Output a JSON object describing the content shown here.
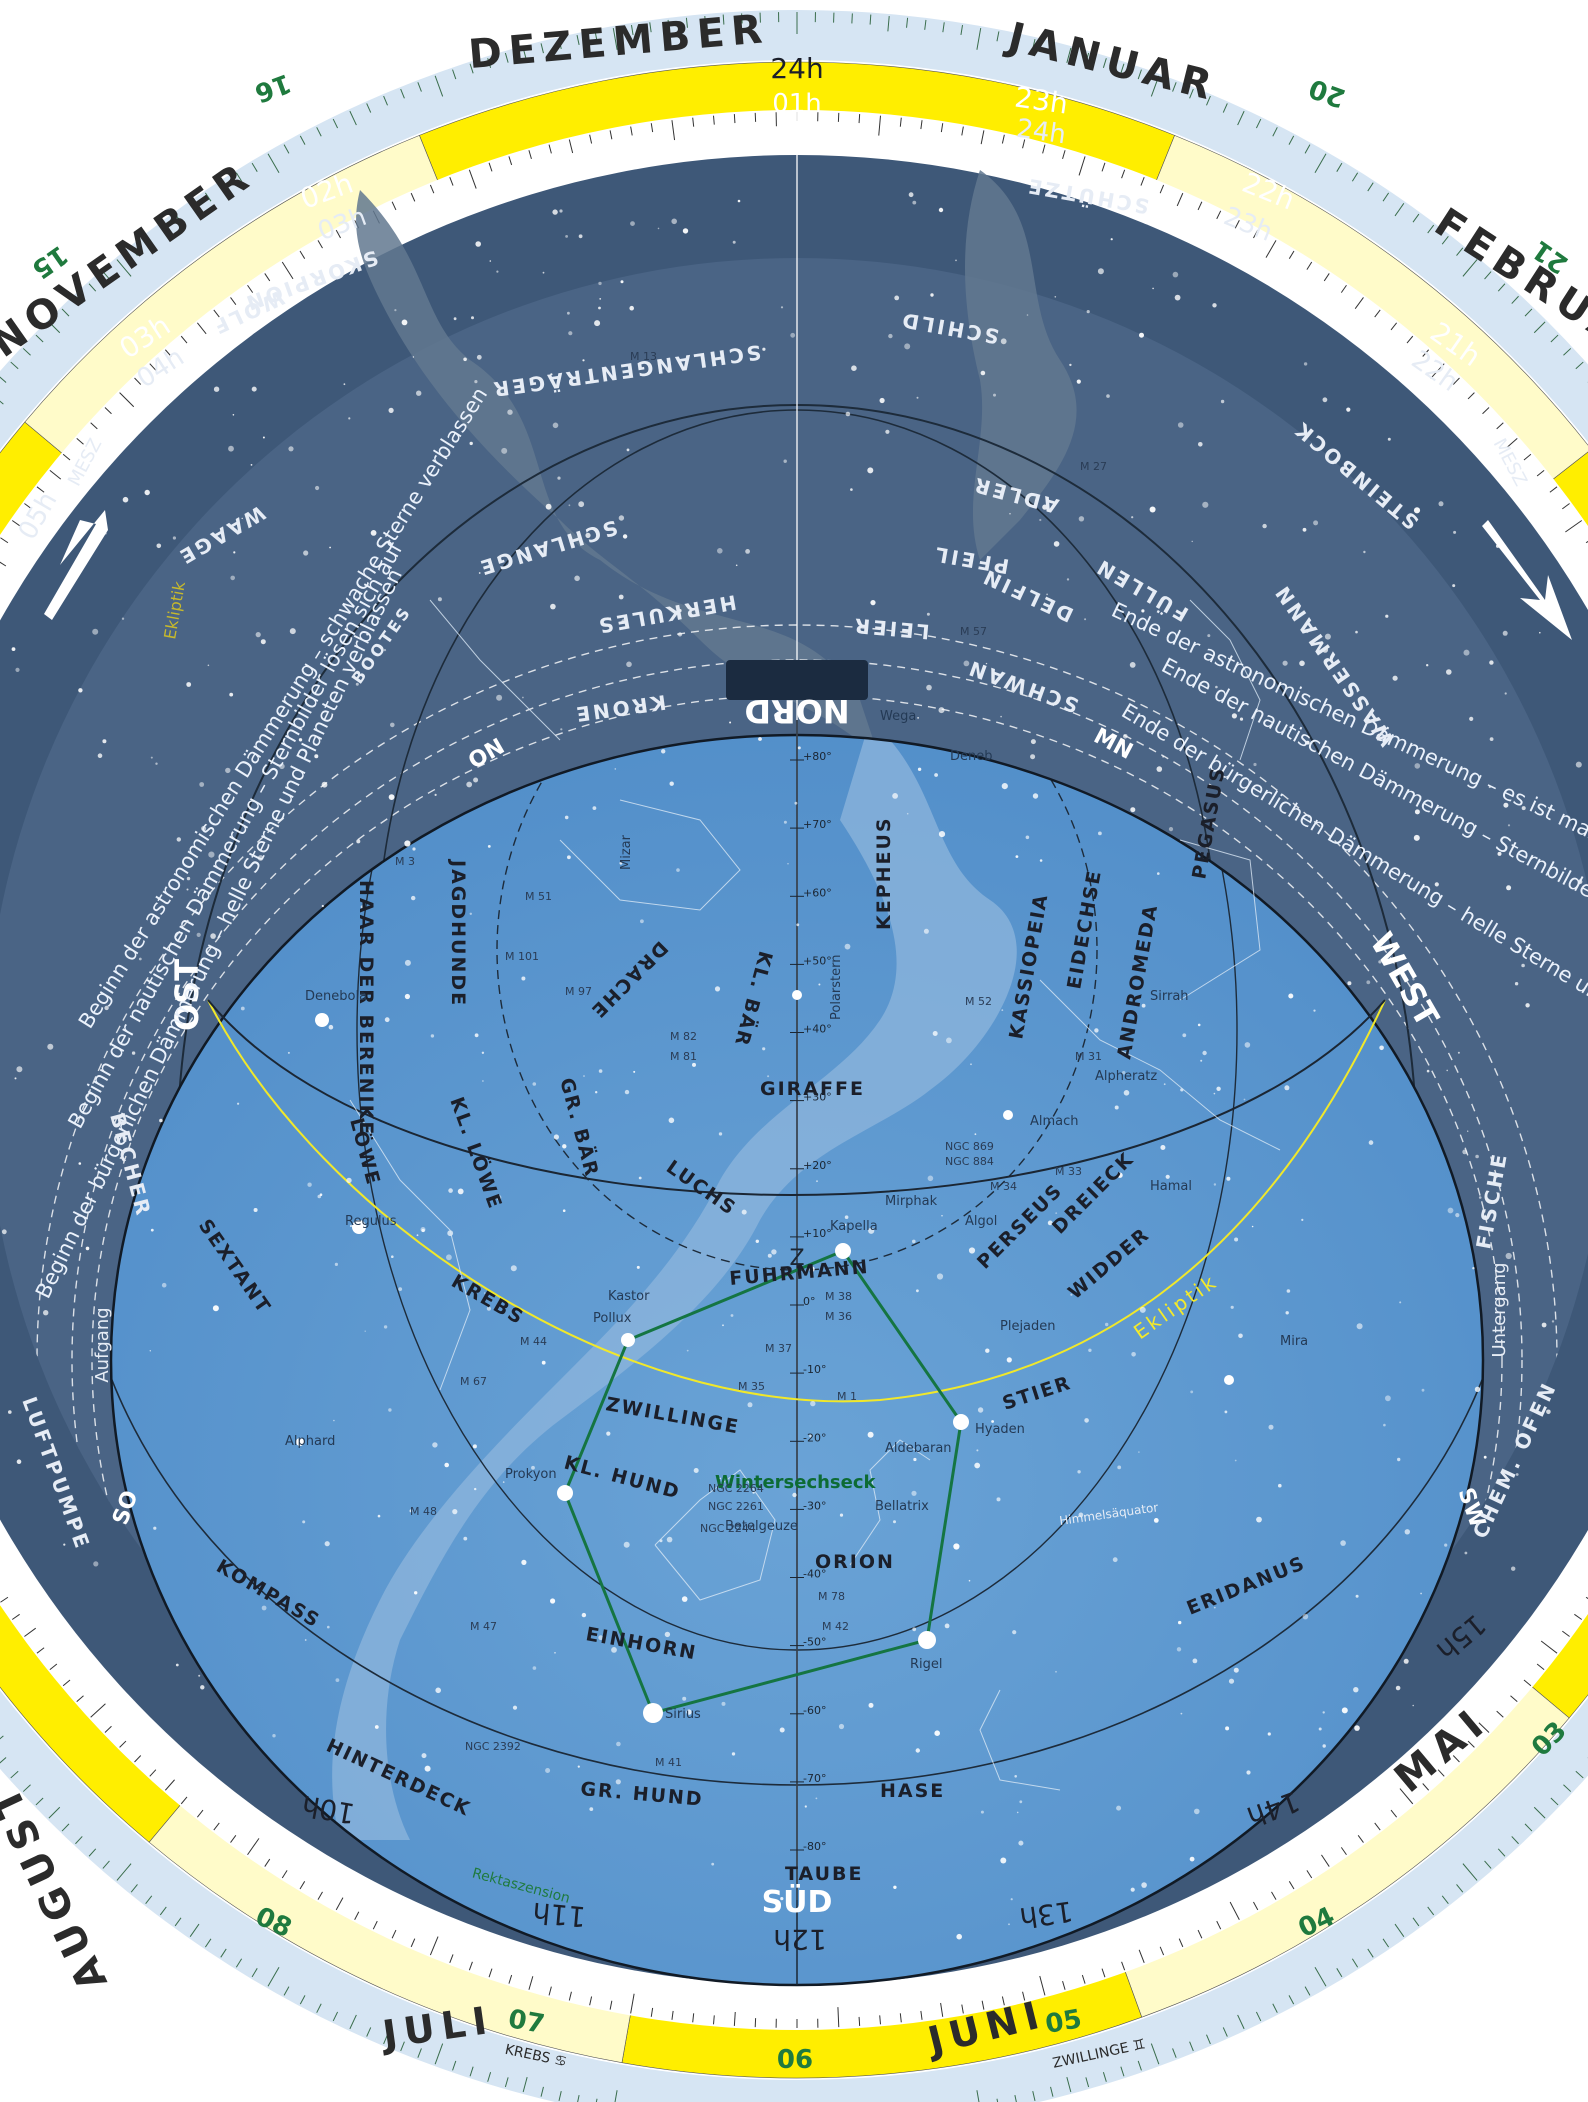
{
  "colors": {
    "outer_ring": "#d6e5f3",
    "scale_ring": "#ffffff",
    "month_yellow": "#ffee00",
    "month_light": "#fffbc9",
    "dark_sky": "#4a6485",
    "deep_sky": "#38506e",
    "visible_sky": "#5e99cf",
    "milky_way": "#8db6dc",
    "ecliptic": "#e5dc28",
    "hexagon": "#157542",
    "hexagon_label": "#0d6b34"
  },
  "months": [
    "DEZEMBER",
    "JANUAR",
    "FEBRUAR",
    "NOVEMBER",
    "AUGUST",
    "JULI",
    "JUNI",
    "MAI"
  ],
  "hours_top": [
    "24h",
    "01h",
    "23h",
    "24h",
    "22h",
    "23h",
    "21h",
    "22h",
    "02h",
    "03h",
    "03h",
    "04h",
    "05h"
  ],
  "hours_bottom": [
    "10h",
    "11h",
    "12h",
    "13h",
    "14h",
    "15h"
  ],
  "scale_numbers": [
    "10",
    "20",
    "30"
  ],
  "ring_labels": {
    "mesz": "MESZ",
    "rektaszension": "Rektaszension",
    "krebs": "KREBS ♋",
    "zwillinge": "ZWILLINGE ♊",
    "ra_06": "06",
    "ra_07": "07",
    "ra_08": "08",
    "ra_05": "05",
    "ra_04": "04",
    "ra_03": "03",
    "ra_15": "15",
    "ra_16": "16",
    "ra_20": "20",
    "ra_21": "21"
  },
  "directions": {
    "nord": "NORD",
    "sud": "SÜD",
    "ost": "OST",
    "west": "WEST",
    "on": "ON",
    "mn": "MN",
    "so": "SO",
    "sw": "SW",
    "z": "Z",
    "aufgang": "Aufgang",
    "untergang": "Untergang"
  },
  "twilight": {
    "left_1": "Beginn der astronomischen Dämmerung – schwache Sterne verblassen",
    "left_2": "Beginn der nautischen Dämmerung – Sternbilder lösen sich auf",
    "left_3": "Beginn der bürgerlichen Dämmerung – helle Sterne und Planeten verblassen",
    "right_1": "Ende der astronomischen Dämmerung – es ist maximal",
    "right_2": "Ende der nautischen Dämmerung – Sternbilder werden sichtbar",
    "right_3": "Ende der bürgerlichen Dämmerung – helle Sterne und Planeten tauchen auf"
  },
  "ecliptic_label": "Ekliptik",
  "equator_label": "Himmelsäquator",
  "hexagon_label": "Wintersechseck",
  "constellations_dark": [
    "SKORPION",
    "SCHLANGENTRÄGER",
    "WAAGE",
    "SCHLANGE",
    "HERKULES",
    "KRONE",
    "LEIER",
    "SCHWAN",
    "PFEIL",
    "ADLER",
    "DELFIN",
    "FÜLLEN",
    "SCHÜTZE",
    "SCHILD",
    "STEINBOCK",
    "WASSERMANN",
    "WOLF",
    "LUFTPUMPE",
    "BECHER",
    "CHEM. OFEN",
    "FISCHE"
  ],
  "constellations_visible": [
    "DRACHE",
    "KL. BÄR",
    "KEPHEUS",
    "KASSIOPEIA",
    "EIDECHSE",
    "PEGASUS",
    "ANDROMEDA",
    "JAGDHUNDE",
    "HAAR DER BERENIKE",
    "GR. BÄR",
    "KL. LÖWE",
    "LÖWE",
    "GIRAFFE",
    "LUCHS",
    "PERSEUS",
    "DREIECK",
    "WIDDER",
    "FUHRMANN",
    "KREBS",
    "ZWILLINGE",
    "STIER",
    "KL. HUND",
    "SEXTANT",
    "ORION",
    "ERIDANUS",
    "KOMPASS",
    "EINHORN",
    "HINTERDECK",
    "GR. HUND",
    "HASE",
    "TAUBE",
    "BOOTES"
  ],
  "stars": [
    "Kastor",
    "Pollux",
    "Prokyon",
    "Betelgeuze",
    "Bellatrix",
    "Rigel",
    "Sirius",
    "Aldebaran",
    "Kapella",
    "Plejaden",
    "Hyaden",
    "Mirphak",
    "Algol",
    "Almach",
    "Alpheratz",
    "Sirrah",
    "Mira",
    "Hamal",
    "Regulus",
    "Denebola",
    "Alphard",
    "Polarstern",
    "Wega",
    "Deneb",
    "Mizar"
  ],
  "objects": [
    "M 44",
    "M 67",
    "M 35",
    "M 36",
    "M 37",
    "M 38",
    "M 1",
    "M 42",
    "M 78",
    "M 41",
    "M 47",
    "M 48",
    "M 31",
    "M 33",
    "M 34",
    "M 52",
    "M 81",
    "M 82",
    "M 97",
    "M 101",
    "M 51",
    "M 3",
    "M 13",
    "M 57",
    "M 27",
    "NGC 2244",
    "NGC 2264",
    "NGC 2261",
    "NGC 2392",
    "NGC 869",
    "NGC 884"
  ],
  "dec_marks": [
    "+80°",
    "+70°",
    "+60°",
    "+50°",
    "+40°",
    "+30°",
    "+20°",
    "+10°",
    "0°",
    "-10°",
    "-20°",
    "-30°",
    "-40°",
    "-50°",
    "-60°",
    "-70°",
    "-80°"
  ]
}
